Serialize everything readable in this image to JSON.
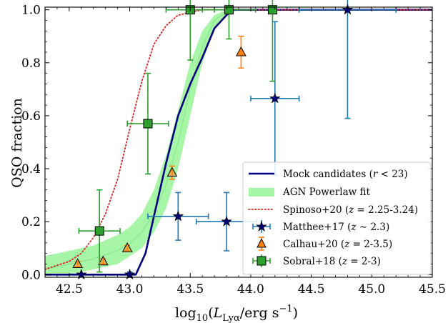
{
  "chart_data": {
    "type": "scatter",
    "xlabel": "log₁₀(L_Lyα / erg s⁻¹)",
    "xlabel_parts": {
      "pre": "log",
      "sub1": "10",
      "paren_open": "(",
      "L": "L",
      "sub2": "Lyα",
      "unit": "/erg s",
      "sup": "−1",
      "paren_close": ")"
    },
    "ylabel": "QSO fraction",
    "xlim": [
      42.3,
      45.5
    ],
    "ylim": [
      -0.01,
      1.01
    ],
    "xticks": [
      42.5,
      43.0,
      43.5,
      44.0,
      44.5,
      45.0,
      45.5
    ],
    "xtick_labels": [
      "42.5",
      "43.0",
      "43.5",
      "44.0",
      "44.5",
      "45.0",
      "45.5"
    ],
    "yticks": [
      0.0,
      0.2,
      0.4,
      0.6,
      0.8,
      1.0
    ],
    "ytick_labels": [
      "0.0",
      "0.2",
      "0.4",
      "0.6",
      "0.8",
      "1.0"
    ],
    "legend_position": "lower-right",
    "colors": {
      "mock": "#00007f",
      "band": "#98f598",
      "spinoso": "#d62728",
      "matthee": "#1f77b4",
      "calhau": "#ff7f0e",
      "sobral": "#2ca02c"
    },
    "lines": [
      {
        "name": "Mock candidates",
        "label": "Mock candidates (r < 23)",
        "style": "solid",
        "x": [
          42.3,
          43.05,
          43.13,
          43.2,
          43.3,
          43.4,
          43.5,
          43.6,
          43.7,
          43.8,
          43.85,
          44.0,
          45.5
        ],
        "y": [
          0.0,
          0.0,
          0.08,
          0.22,
          0.42,
          0.6,
          0.72,
          0.82,
          0.93,
          0.98,
          1.0,
          1.0,
          1.0
        ]
      },
      {
        "name": "Spinoso+20",
        "label": "Spinoso+20 (z = 2.25-3.24)",
        "style": "dotted",
        "x": [
          42.3,
          42.5,
          42.6,
          42.7,
          42.8,
          42.9,
          43.0,
          43.05,
          43.1,
          43.15,
          43.2,
          43.3,
          43.4,
          43.5,
          43.6,
          43.7,
          45.5
        ],
        "y": [
          0.02,
          0.05,
          0.08,
          0.14,
          0.23,
          0.36,
          0.55,
          0.64,
          0.73,
          0.8,
          0.87,
          0.94,
          0.98,
          0.99,
          1.0,
          1.0,
          1.0
        ]
      }
    ],
    "band": {
      "name": "AGN Powerlaw fit",
      "label": "AGN Powerlaw fit",
      "x": [
        42.3,
        42.5,
        42.7,
        42.9,
        43.0,
        43.1,
        43.2,
        43.3,
        43.4,
        43.5,
        43.6,
        43.7,
        43.8,
        43.9,
        44.0,
        45.5
      ],
      "lower": [
        0.0,
        0.0,
        0.02,
        0.04,
        0.07,
        0.1,
        0.16,
        0.25,
        0.4,
        0.6,
        0.8,
        0.93,
        0.98,
        1.0,
        1.0,
        1.0
      ],
      "upper": [
        0.07,
        0.09,
        0.11,
        0.15,
        0.18,
        0.23,
        0.32,
        0.45,
        0.62,
        0.8,
        0.92,
        0.98,
        1.0,
        1.0,
        1.0,
        1.0
      ],
      "center": [
        0.02,
        0.04,
        0.06,
        0.09,
        0.12,
        0.16,
        0.23,
        0.34,
        0.5,
        0.7,
        0.86,
        0.96,
        0.99,
        1.0,
        1.0,
        1.0
      ]
    },
    "series": [
      {
        "name": "Matthee+17",
        "label": "Matthee+17 (z ∼ 2.3)",
        "marker": "star",
        "points": [
          {
            "x": 42.6,
            "y": 0.0,
            "xerr": 0.0,
            "yerr": 0.0
          },
          {
            "x": 43.0,
            "y": 0.0,
            "xerr": 0.0,
            "yerr": 0.01
          },
          {
            "x": 43.4,
            "y": 0.22,
            "xerr": 0.25,
            "yerr": 0.09
          },
          {
            "x": 43.8,
            "y": 0.2,
            "xerr": 0.25,
            "yerr": 0.11
          },
          {
            "x": 44.2,
            "y": 0.665,
            "xerr": 0.2,
            "yerr": 0.29
          },
          {
            "x": 44.8,
            "y": 1.0,
            "xerr": 0.4,
            "yerr": 0.41
          }
        ]
      },
      {
        "name": "Calhau+20",
        "label": "Calhau+20 (z = 2-3.5)",
        "marker": "triangle",
        "points": [
          {
            "x": 42.57,
            "y": 0.04,
            "xerr": 0.0,
            "yerr": 0.01
          },
          {
            "x": 42.78,
            "y": 0.05,
            "xerr": 0.0,
            "yerr": 0.01
          },
          {
            "x": 42.98,
            "y": 0.1,
            "xerr": 0.0,
            "yerr": 0.01
          },
          {
            "x": 43.35,
            "y": 0.385,
            "xerr": 0.0,
            "yerr": 0.025
          },
          {
            "x": 43.92,
            "y": 0.84,
            "xerr": 0.0,
            "yerr": 0.06
          }
        ]
      },
      {
        "name": "Sobral+18",
        "label": "Sobral+18 (z = 2-3)",
        "marker": "square",
        "points": [
          {
            "x": 42.75,
            "y": 0.165,
            "xerr": 0.17,
            "yerr": 0.155
          },
          {
            "x": 43.15,
            "y": 0.57,
            "xerr": 0.17,
            "yerr": 0.19
          },
          {
            "x": 43.5,
            "y": 1.0,
            "xerr": 0.2,
            "yerr": 0.19
          },
          {
            "x": 43.82,
            "y": 1.0,
            "xerr": 0.22,
            "yerr": 0.11
          },
          {
            "x": 44.18,
            "y": 1.0,
            "xerr": 0.0,
            "yerr": 0.27
          }
        ]
      }
    ]
  },
  "legend": {
    "mock": "Mock candidates (r < 23)",
    "mock_parts": {
      "pre": "Mock candidates (",
      "var": "r",
      "post": " < 23)"
    },
    "band": "AGN Powerlaw fit",
    "spinoso": "Spinoso+20 (z = 2.25-3.24)",
    "spinoso_parts": {
      "pre": "Spinoso+20 (",
      "var": "z",
      "post": " = 2.25-3.24)"
    },
    "matthee": "Matthee+17 (z ∼ 2.3)",
    "matthee_parts": {
      "pre": "Matthee+17 (",
      "var": "z",
      "post": " ∼ 2.3)"
    },
    "calhau": "Calhau+20 (z = 2-3.5)",
    "calhau_parts": {
      "pre": "Calhau+20 (",
      "var": "z",
      "post": " = 2-3.5)"
    },
    "sobral": "Sobral+18 (z = 2-3)",
    "sobral_parts": {
      "pre": "Sobral+18 (",
      "var": "z",
      "post": " = 2-3)"
    }
  }
}
